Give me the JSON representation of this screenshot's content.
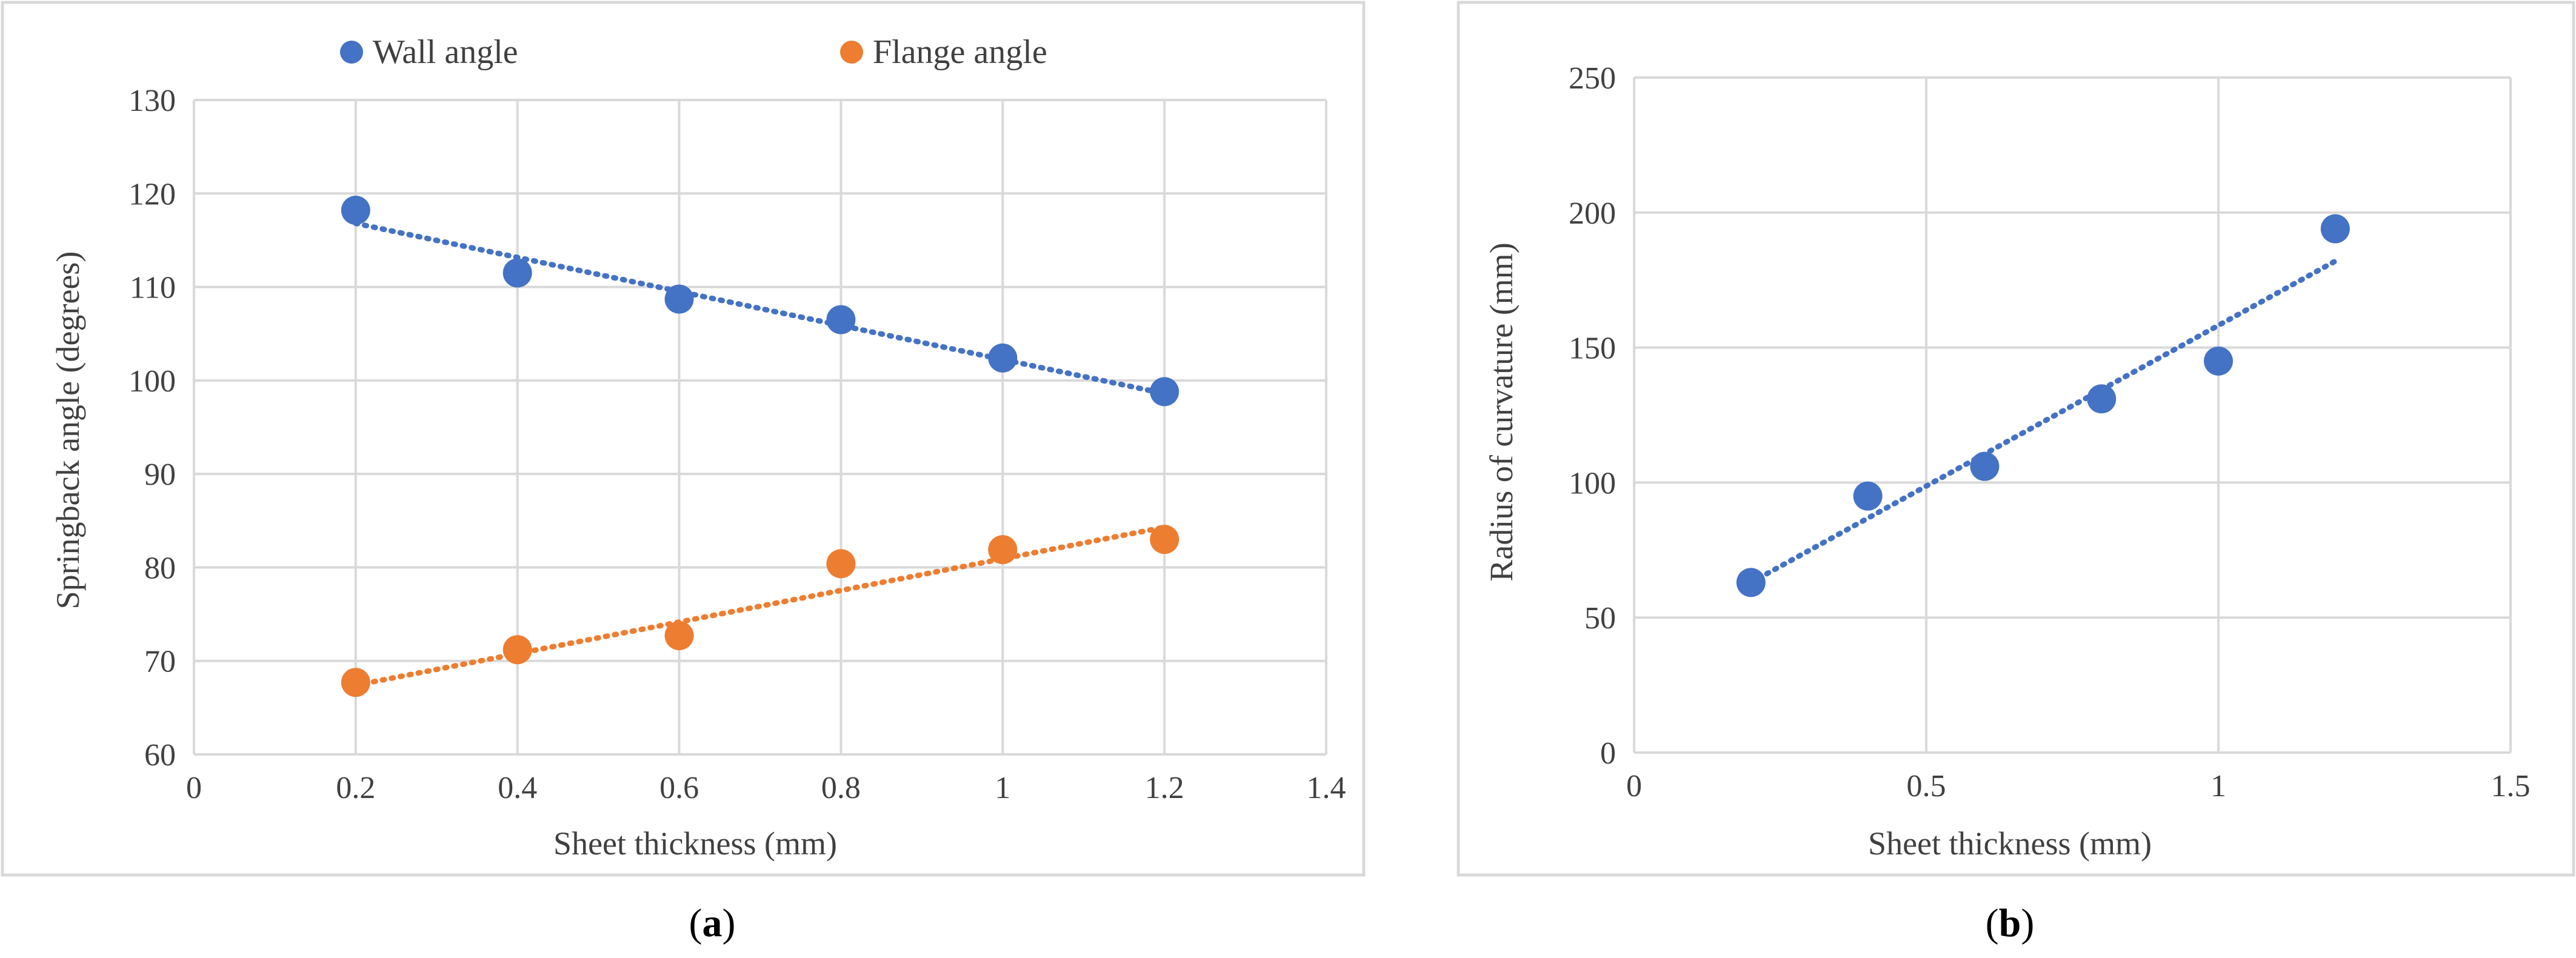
{
  "chart_data": [
    {
      "type": "scatter",
      "panel": "a",
      "caption": {
        "open": "(",
        "letter": "a",
        "close": ")"
      },
      "xlabel": "Sheet thickness (mm)",
      "ylabel": "Springback angle (degrees)",
      "xlim": [
        0,
        1.4
      ],
      "ylim": [
        60,
        130
      ],
      "xticks": [
        0,
        0.2,
        0.4,
        0.6,
        0.8,
        1,
        1.2,
        1.4
      ],
      "xtick_labels": [
        "0",
        "0.2",
        "0.4",
        "0.6",
        "0.8",
        "1",
        "1.2",
        "1.4"
      ],
      "yticks": [
        60,
        70,
        80,
        90,
        100,
        110,
        120,
        130
      ],
      "ytick_labels": [
        "60",
        "70",
        "80",
        "90",
        "100",
        "110",
        "120",
        "130"
      ],
      "grid": true,
      "legend_position": "top",
      "series": [
        {
          "name": "Wall angle",
          "color": "#4472c4",
          "x": [
            0.2,
            0.4,
            0.6,
            0.8,
            1.0,
            1.2
          ],
          "y": [
            118.2,
            111.5,
            108.7,
            106.5,
            102.4,
            98.8
          ],
          "trendline": {
            "type": "linear",
            "x": [
              0.2,
              1.2
            ],
            "y": [
              116.8,
              98.6
            ]
          }
        },
        {
          "name": "Flange angle",
          "color": "#ed7d31",
          "x": [
            0.2,
            0.4,
            0.6,
            0.8,
            1.0,
            1.2
          ],
          "y": [
            67.7,
            71.2,
            72.7,
            80.4,
            81.9,
            83.0
          ],
          "trendline": {
            "type": "linear",
            "x": [
              0.2,
              1.2
            ],
            "y": [
              67.4,
              84.3
            ]
          }
        }
      ]
    },
    {
      "type": "scatter",
      "panel": "b",
      "caption": {
        "open": "(",
        "letter": "b",
        "close": ")"
      },
      "xlabel": "Sheet thickness (mm)",
      "ylabel": "Radius of curvature (mm)",
      "xlim": [
        0,
        1.5
      ],
      "ylim": [
        0,
        250
      ],
      "xticks": [
        0,
        0.5,
        1,
        1.5
      ],
      "xtick_labels": [
        "0",
        "0.5",
        "1",
        "1.5"
      ],
      "yticks": [
        0,
        50,
        100,
        150,
        200,
        250
      ],
      "ytick_labels": [
        "0",
        "50",
        "100",
        "150",
        "200",
        "250"
      ],
      "grid": true,
      "series": [
        {
          "name": "Radius of curvature",
          "color": "#4472c4",
          "x": [
            0.2,
            0.4,
            0.6,
            0.8,
            1.0,
            1.2
          ],
          "y": [
            63,
            95,
            106,
            131,
            145,
            194
          ],
          "trendline": {
            "type": "linear",
            "x": [
              0.2,
              1.2
            ],
            "y": [
              63,
              182
            ]
          }
        }
      ]
    }
  ]
}
